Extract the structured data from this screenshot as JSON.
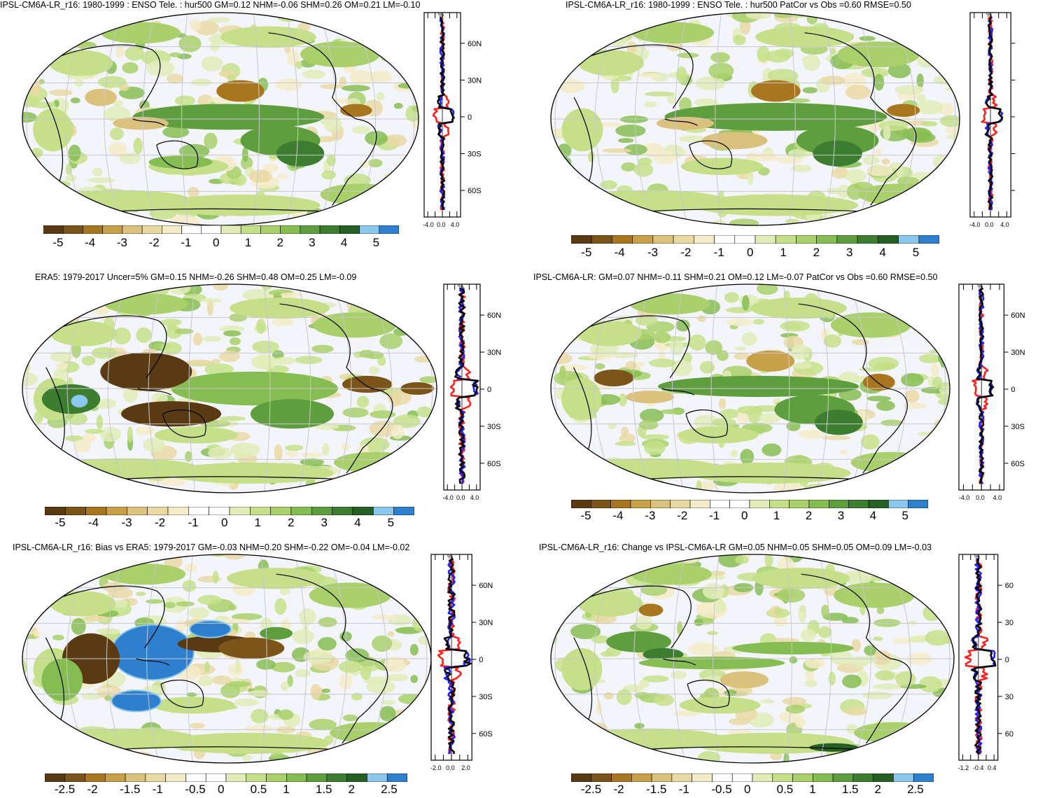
{
  "colors": {
    "scale": [
      "#5a3a12",
      "#7b5419",
      "#a8761f",
      "#c9a04a",
      "#dbc27c",
      "#e9d9a4",
      "#f4ebc8",
      "#ffffff",
      "#ffffff",
      "#e2ecb8",
      "#c6e08a",
      "#a9d06a",
      "#86bd52",
      "#5f9e3e",
      "#3c7d30",
      "#255f24",
      "#8cc8ee",
      "#2f7fcf"
    ],
    "ocean": "#f4f5fa",
    "grid": "#c8c8cc",
    "coast": "#000000",
    "series": {
      "red": "#ff1f1f",
      "blue": "#1f1fff",
      "black": "#000000"
    }
  },
  "chart_data": [
    {
      "type": "heatmap",
      "panel": "top-left",
      "title": "IPSL-CM6A-LR_r16: 1980-1999 : ENSO Tele. : hur500 GM=0.12 NHM=-0.06 SHM=0.26 OM=0.21 LM=-0.10",
      "colorbar_labels": [
        "-5",
        "-4",
        "-3",
        "-2",
        "-1",
        "0",
        "1",
        "2",
        "3",
        "4",
        "5"
      ],
      "profile": {
        "unit": "%",
        "x_ticks": [
          "-4.0",
          "0.0",
          "4.0"
        ],
        "y_ticks": [
          "60N",
          "30N",
          "0",
          "30S",
          "60S"
        ],
        "series": [
          "red",
          "blue",
          "black"
        ]
      }
    },
    {
      "type": "heatmap",
      "panel": "top-right",
      "title": "IPSL-CM6A-LR_r16: 1980-1999 : ENSO Tele. : hur500 PatCor vs Obs =0.60 RMSE=0.50",
      "colorbar_labels": [
        "-5",
        "-4",
        "-3",
        "-2",
        "-1",
        "0",
        "1",
        "2",
        "3",
        "4",
        "5"
      ],
      "profile": {
        "unit": "%",
        "x_ticks": [
          "-4.0",
          "0.0",
          "4.0"
        ],
        "y_ticks": [
          "",
          "",
          "",
          "",
          ""
        ],
        "series": [
          "red",
          "blue",
          "black"
        ]
      }
    },
    {
      "type": "heatmap",
      "panel": "middle-left",
      "title": "ERA5: 1979-2017 Uncer=5% GM=0.15 NHM=-0.26 SHM=0.48 OM=0.25 LM=-0.09",
      "colorbar_labels": [
        "-5",
        "-4",
        "-3",
        "-2",
        "-1",
        "0",
        "1",
        "2",
        "3",
        "4",
        "5"
      ],
      "profile": {
        "unit": "%",
        "x_ticks": [
          "-4.0",
          "0.0",
          "4.0"
        ],
        "y_ticks": [
          "60N",
          "30N",
          "0",
          "30S",
          "60S"
        ],
        "series": [
          "red",
          "blue",
          "black"
        ]
      }
    },
    {
      "type": "heatmap",
      "panel": "middle-right",
      "title": "IPSL-CM6A-LR: GM=0.07 NHM=-0.11 SHM=0.21 OM=0.12 LM=-0.07 PatCor vs Obs =0.60 RMSE=0.50",
      "colorbar_labels": [
        "-5",
        "-4",
        "-3",
        "-2",
        "-1",
        "0",
        "1",
        "2",
        "3",
        "4",
        "5"
      ],
      "profile": {
        "unit": "%",
        "x_ticks": [
          "-4.0",
          "0.0",
          "4.0"
        ],
        "y_ticks": [
          "60N",
          "30N",
          "0",
          "30S",
          "60S"
        ],
        "series": [
          "red",
          "blue",
          "black"
        ]
      }
    },
    {
      "type": "heatmap",
      "panel": "bottom-left",
      "title": "IPSL-CM6A-LR_r16: Bias vs ERA5: 1979-2017 GM=-0.03 NHM=0.20 SHM=-0.22 OM=-0.04 LM=-0.02",
      "colorbar_labels": [
        "-2.5",
        "-2",
        "-1.5",
        "-1",
        "-0.5",
        "0",
        "0.5",
        "1",
        "1.5",
        "2",
        "2.5"
      ],
      "profile": {
        "unit": "%",
        "x_ticks": [
          "-2.0",
          "0.0",
          "2.0"
        ],
        "y_ticks": [
          "60N",
          "30N",
          "0",
          "30S",
          "60S"
        ],
        "series": [
          "red",
          "blue",
          "black"
        ]
      }
    },
    {
      "type": "heatmap",
      "panel": "bottom-right",
      "title": "IPSL-CM6A-LR_r16: Change vs IPSL-CM6A-LR GM=0.05 NHM=0.05 SHM=0.05 OM=0.09 LM=-0.03",
      "colorbar_labels": [
        "-2.5",
        "-2",
        "-1.5",
        "-1",
        "-0.5",
        "0",
        "0.5",
        "1",
        "1.5",
        "2",
        "2.5"
      ],
      "profile": {
        "unit": "%",
        "x_ticks": [
          "-1.2",
          "-0.4",
          "0.4"
        ],
        "y_ticks": [
          "60",
          "30",
          "0",
          "30",
          "60"
        ],
        "series": [
          "red",
          "blue",
          "black"
        ]
      }
    }
  ]
}
